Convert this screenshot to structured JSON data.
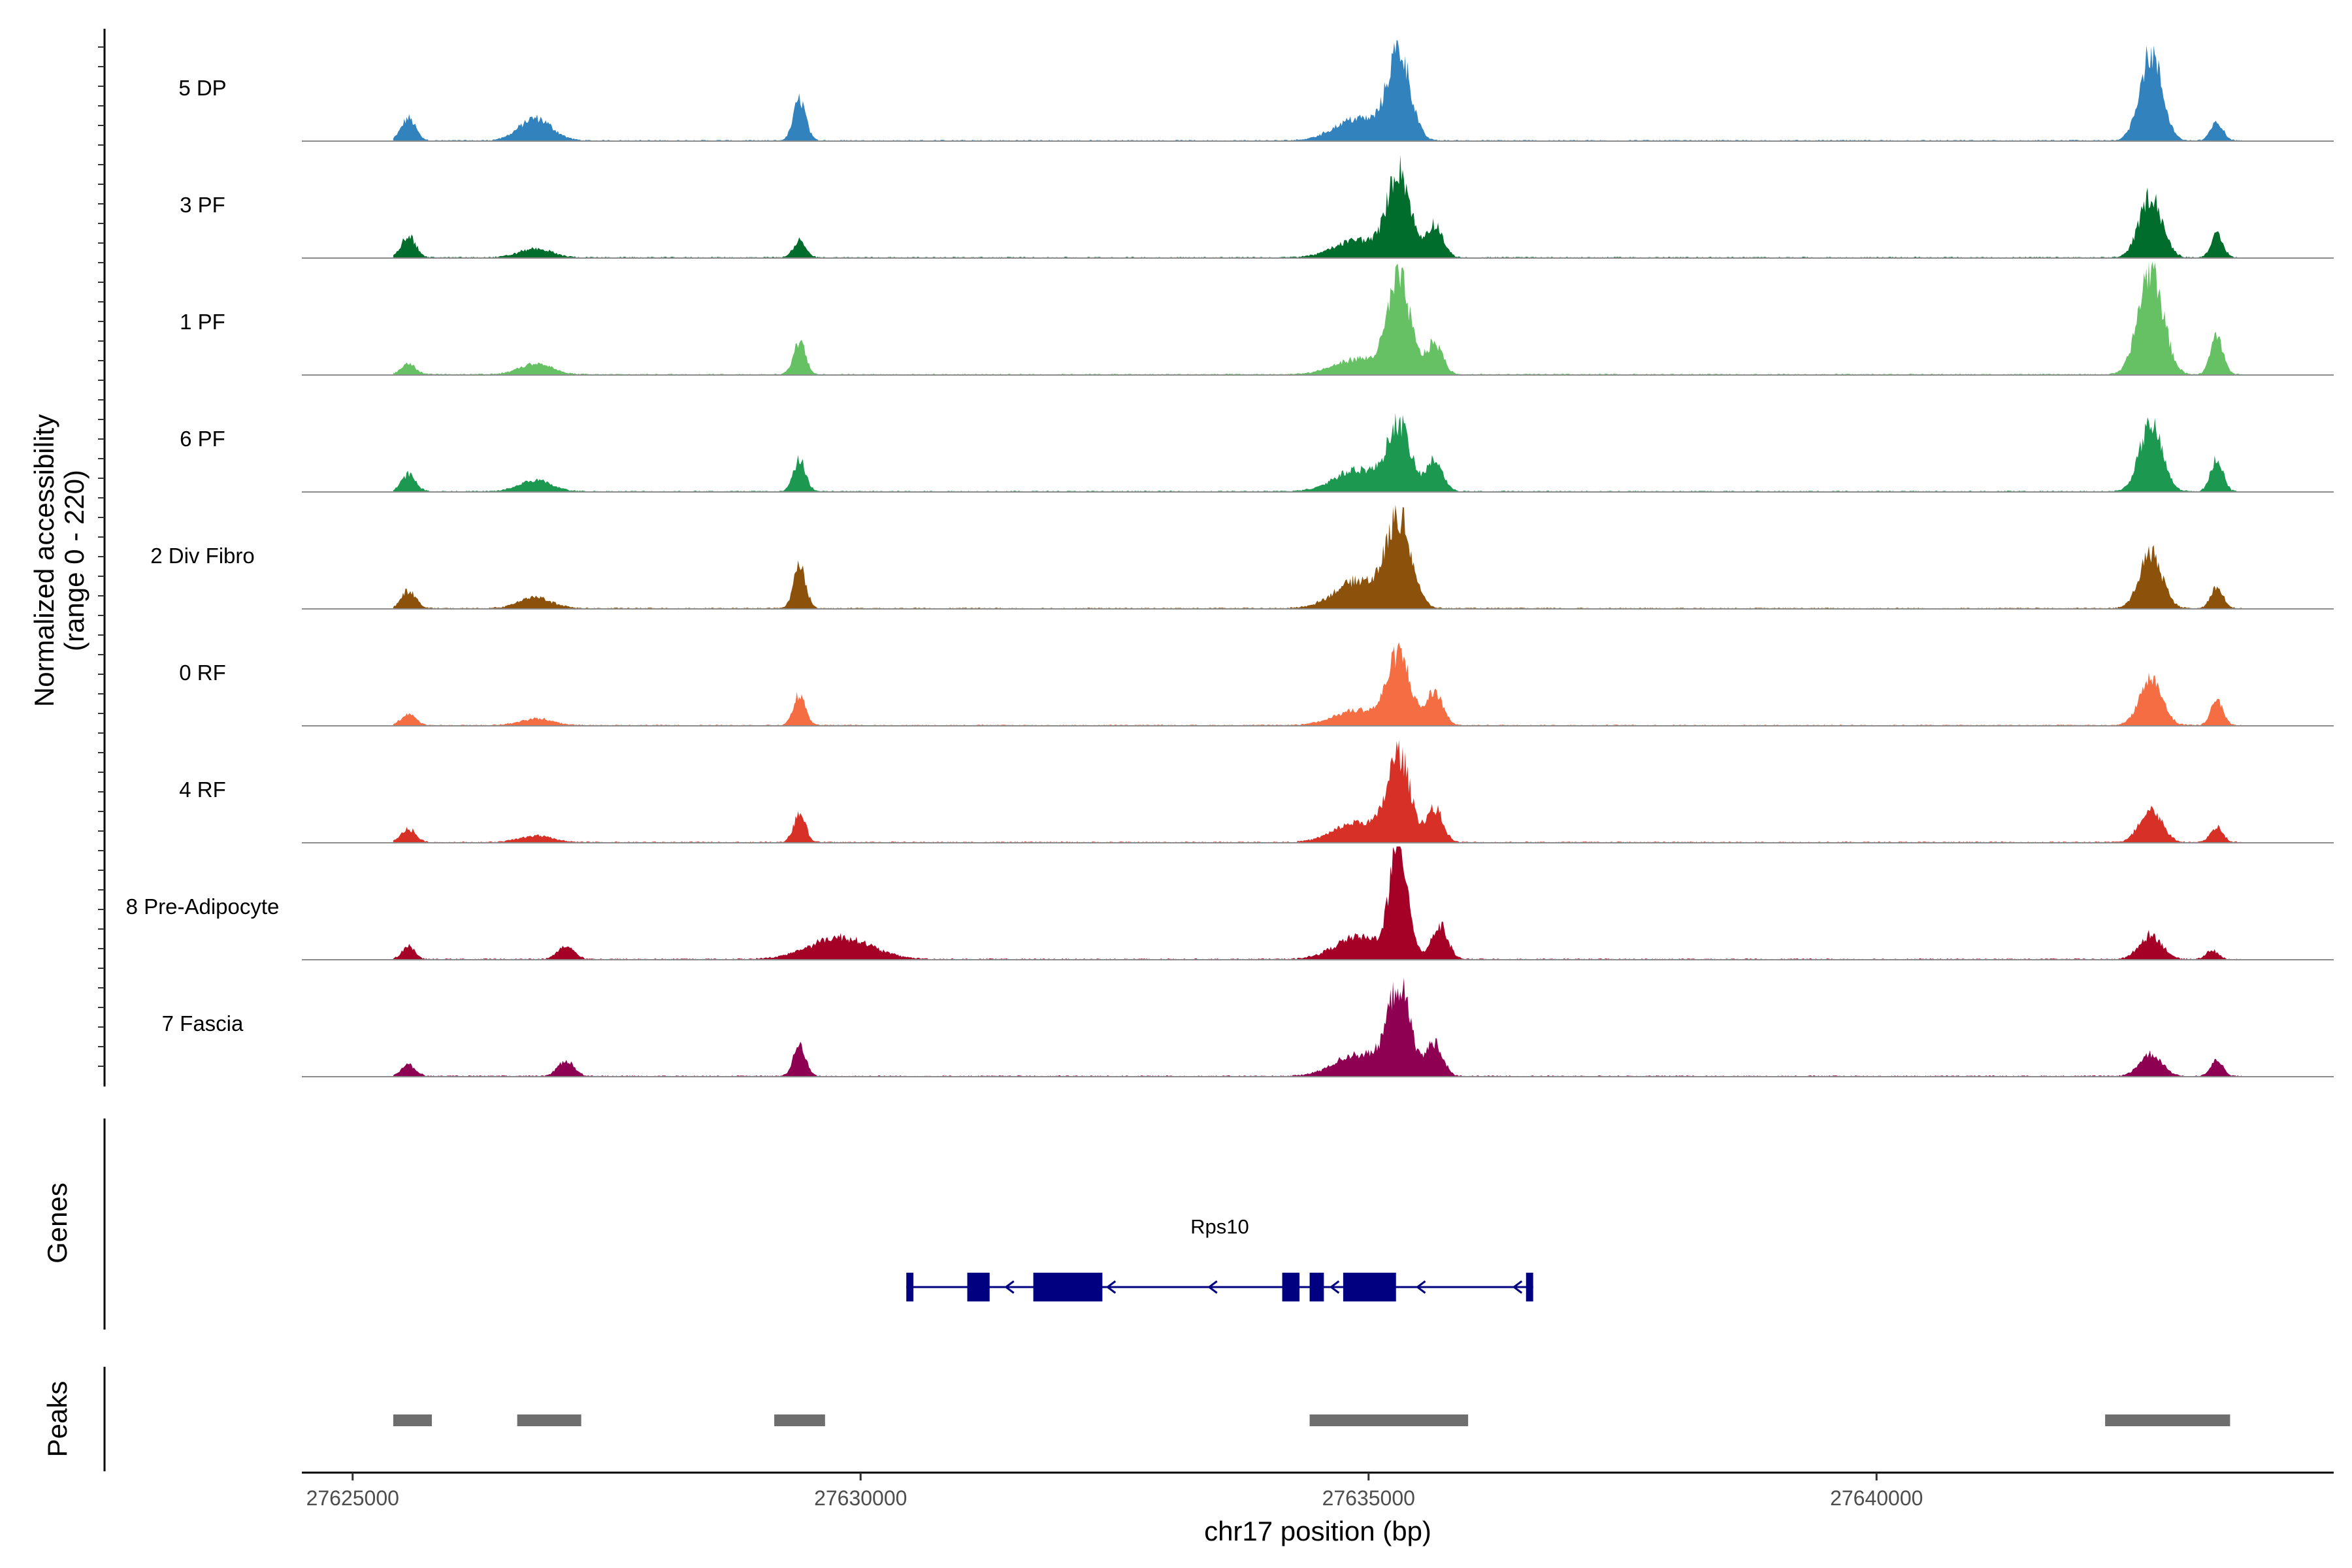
{
  "chart_data": {
    "type": "area",
    "title": "",
    "xlabel": "chr17 position (bp)",
    "ylabel": "Normalized accessibility\n(range 0 - 220)",
    "ylabel_lines": [
      "Normalized accessibility",
      "(range 0 - 220)"
    ],
    "y_range": [
      0,
      220
    ],
    "x_range": [
      27624500,
      27644500
    ],
    "x_ticks": [
      27625000,
      27630000,
      27635000,
      27640000
    ],
    "x_tick_labels": [
      "27625000",
      "27630000",
      "27635000",
      "27640000"
    ],
    "region_start": 27625400,
    "region_end": 27643600,
    "series": [
      {
        "name": "5 DP",
        "color": "#3182bd",
        "peaks": [
          [
            27625550,
            0.2,
            70
          ],
          [
            27626800,
            0.2,
            160
          ],
          [
            27629400,
            0.37,
            60
          ],
          [
            27635300,
            0.78,
            110
          ],
          [
            27634900,
            0.2,
            230
          ],
          [
            27642700,
            0.78,
            110
          ],
          [
            27643350,
            0.16,
            60
          ]
        ]
      },
      {
        "name": "3 PF",
        "color": "#006d2c",
        "peaks": [
          [
            27625550,
            0.2,
            70
          ],
          [
            27626800,
            0.08,
            160
          ],
          [
            27629400,
            0.16,
            60
          ],
          [
            27635300,
            0.76,
            110
          ],
          [
            27635650,
            0.3,
            80
          ],
          [
            27634900,
            0.16,
            230
          ],
          [
            27642700,
            0.56,
            110
          ],
          [
            27643350,
            0.2,
            60
          ]
        ]
      },
      {
        "name": "1 PF",
        "color": "#66c164",
        "peaks": [
          [
            27625550,
            0.1,
            70
          ],
          [
            27626800,
            0.1,
            160
          ],
          [
            27629400,
            0.3,
            60
          ],
          [
            27635300,
            0.83,
            110
          ],
          [
            27635650,
            0.28,
            80
          ],
          [
            27634900,
            0.14,
            230
          ],
          [
            27642700,
            0.95,
            120
          ],
          [
            27643350,
            0.36,
            60
          ]
        ]
      },
      {
        "name": "6 PF",
        "color": "#1c9850",
        "peaks": [
          [
            27625550,
            0.16,
            70
          ],
          [
            27626800,
            0.1,
            160
          ],
          [
            27629400,
            0.28,
            60
          ],
          [
            27635300,
            0.58,
            110
          ],
          [
            27635650,
            0.28,
            80
          ],
          [
            27634900,
            0.2,
            230
          ],
          [
            27642700,
            0.6,
            110
          ],
          [
            27643350,
            0.3,
            60
          ]
        ]
      },
      {
        "name": "2 Div Fibro",
        "color": "#8c510a",
        "peaks": [
          [
            27625550,
            0.16,
            70
          ],
          [
            27626800,
            0.1,
            160
          ],
          [
            27629400,
            0.38,
            60
          ],
          [
            27635300,
            0.78,
            120
          ],
          [
            27634900,
            0.25,
            230
          ],
          [
            27642700,
            0.5,
            110
          ],
          [
            27643350,
            0.2,
            60
          ]
        ]
      },
      {
        "name": "0 RF",
        "color": "#f46d43",
        "peaks": [
          [
            27625550,
            0.1,
            70
          ],
          [
            27626800,
            0.06,
            160
          ],
          [
            27629400,
            0.28,
            60
          ],
          [
            27635300,
            0.62,
            110
          ],
          [
            27635650,
            0.3,
            80
          ],
          [
            27634900,
            0.14,
            230
          ],
          [
            27642700,
            0.42,
            110
          ],
          [
            27643350,
            0.22,
            60
          ]
        ]
      },
      {
        "name": "4 RF",
        "color": "#d73027",
        "peaks": [
          [
            27625550,
            0.12,
            70
          ],
          [
            27626800,
            0.06,
            160
          ],
          [
            27629400,
            0.25,
            60
          ],
          [
            27635300,
            0.76,
            110
          ],
          [
            27635650,
            0.3,
            80
          ],
          [
            27634900,
            0.18,
            230
          ],
          [
            27642700,
            0.3,
            110
          ],
          [
            27643350,
            0.14,
            60
          ]
        ]
      },
      {
        "name": "8 Pre-Adipocyte",
        "color": "#a50026",
        "peaks": [
          [
            27625550,
            0.12,
            60
          ],
          [
            27627100,
            0.12,
            80
          ],
          [
            27629800,
            0.2,
            300
          ],
          [
            27635300,
            1.0,
            90
          ],
          [
            27635700,
            0.3,
            80
          ],
          [
            27634900,
            0.2,
            230
          ],
          [
            27642700,
            0.22,
            110
          ],
          [
            27643300,
            0.08,
            60
          ]
        ]
      },
      {
        "name": "7 Fascia",
        "color": "#8e0152",
        "peaks": [
          [
            27625550,
            0.1,
            70
          ],
          [
            27627100,
            0.14,
            80
          ],
          [
            27629400,
            0.28,
            60
          ],
          [
            27635300,
            0.78,
            110
          ],
          [
            27635650,
            0.3,
            80
          ],
          [
            27634900,
            0.2,
            230
          ],
          [
            27642700,
            0.2,
            110
          ],
          [
            27643350,
            0.14,
            60
          ]
        ]
      }
    ],
    "genes_panel_title": "Genes",
    "gene": {
      "name": "Rps10",
      "strand": "-",
      "start": 27630450,
      "end": 27636620,
      "color": "#000080",
      "exons": [
        [
          27630450,
          27630520
        ],
        [
          27631050,
          27631270
        ],
        [
          27631700,
          27632380
        ],
        [
          27634150,
          27634320
        ],
        [
          27634420,
          27634560
        ],
        [
          27634750,
          27635270
        ],
        [
          27636550,
          27636620
        ]
      ],
      "arrows": [
        27631450,
        27632450,
        27633450,
        27634650,
        27635500,
        27636450
      ]
    },
    "peaks_panel_title": "Peaks",
    "peak_color": "#6e6e6e",
    "peak_regions": [
      [
        27625400,
        27625780
      ],
      [
        27626620,
        27627250
      ],
      [
        27629150,
        27629650
      ],
      [
        27634420,
        27635980
      ],
      [
        27642250,
        27643480
      ]
    ]
  }
}
